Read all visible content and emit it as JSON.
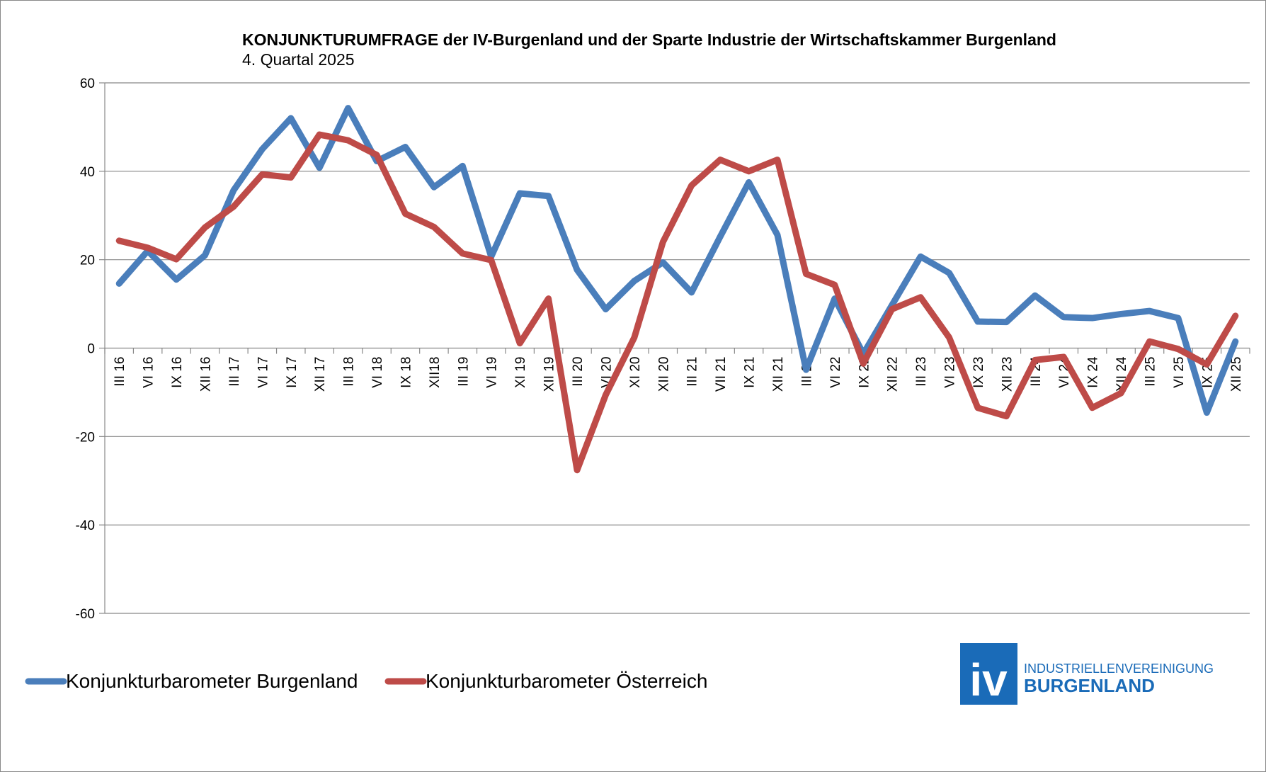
{
  "chart_data": {
    "type": "line",
    "title": "KONJUNKTURUMFRAGE der IV-Burgenland und der Sparte Industrie der Wirtschaftskammer Burgenland",
    "subtitle": "4. Quartal 2025",
    "xlabel": "",
    "ylabel": "",
    "ylim": [
      -60,
      60
    ],
    "yticks": [
      60,
      40,
      20,
      0,
      -20,
      -40,
      -60
    ],
    "grid": true,
    "legend_position": "bottom-left",
    "categories": [
      "III 16",
      "VI 16",
      "IX 16",
      "XII 16",
      "III 17",
      "VI 17",
      "IX 17",
      "XII 17",
      "III 18",
      "VI 18",
      "IX 18",
      "XII18",
      "III 19",
      "VI 19",
      "XI 19",
      "XII 19",
      "III 20",
      "VI 20",
      "XI 20",
      "XII 20",
      "III 21",
      "VII 21",
      "IX 21",
      "XII 21",
      "III 22",
      "VI 22",
      "IX 22",
      "XII 22",
      "III 23",
      "VI 23",
      "IX 23",
      "XII 23",
      "III 24",
      "VI 24",
      "IX 24",
      "XII 24",
      "III 25",
      "VI 25",
      "IX 25",
      "XII 25"
    ],
    "series": [
      {
        "name": "Konjunkturbarometer Burgenland",
        "color": "#4a7ebb",
        "values": [
          14.6,
          22,
          15.5,
          21,
          35.7,
          45,
          52,
          40.8,
          54.3,
          42.3,
          45.5,
          36.4,
          41.2,
          20.7,
          35,
          34.4,
          17.7,
          8.8,
          15.2,
          19.4,
          12.6,
          25.2,
          37.5,
          25.6,
          -4.9,
          11.2,
          -1.3,
          9.7,
          20.7,
          17,
          6,
          5.9,
          11.9,
          7,
          6.8,
          7.7,
          8.4,
          6.8,
          -14.6,
          1.5
        ]
      },
      {
        "name": "Konjunkturbarometer Österreich",
        "color": "#be4b48",
        "values": [
          24.3,
          22.7,
          20.1,
          27.3,
          32,
          39.3,
          38.6,
          48.3,
          47,
          43.7,
          30.4,
          27.4,
          21.4,
          19.9,
          1.1,
          11.2,
          -27.6,
          -10.6,
          2.4,
          24,
          36.8,
          42.6,
          40,
          42.6,
          16.8,
          14.3,
          -3.5,
          8.8,
          11.5,
          2.4,
          -13.5,
          -15.4,
          -2.7,
          -2,
          -13.5,
          -10.2,
          1.5,
          -0.2,
          -3.7,
          7.3
        ]
      }
    ]
  },
  "logo": {
    "mark": "iv",
    "line1": "INDUSTRIELLENVEREINIGUNG",
    "line2": "BURGENLAND",
    "color": "#1a6bb8"
  }
}
